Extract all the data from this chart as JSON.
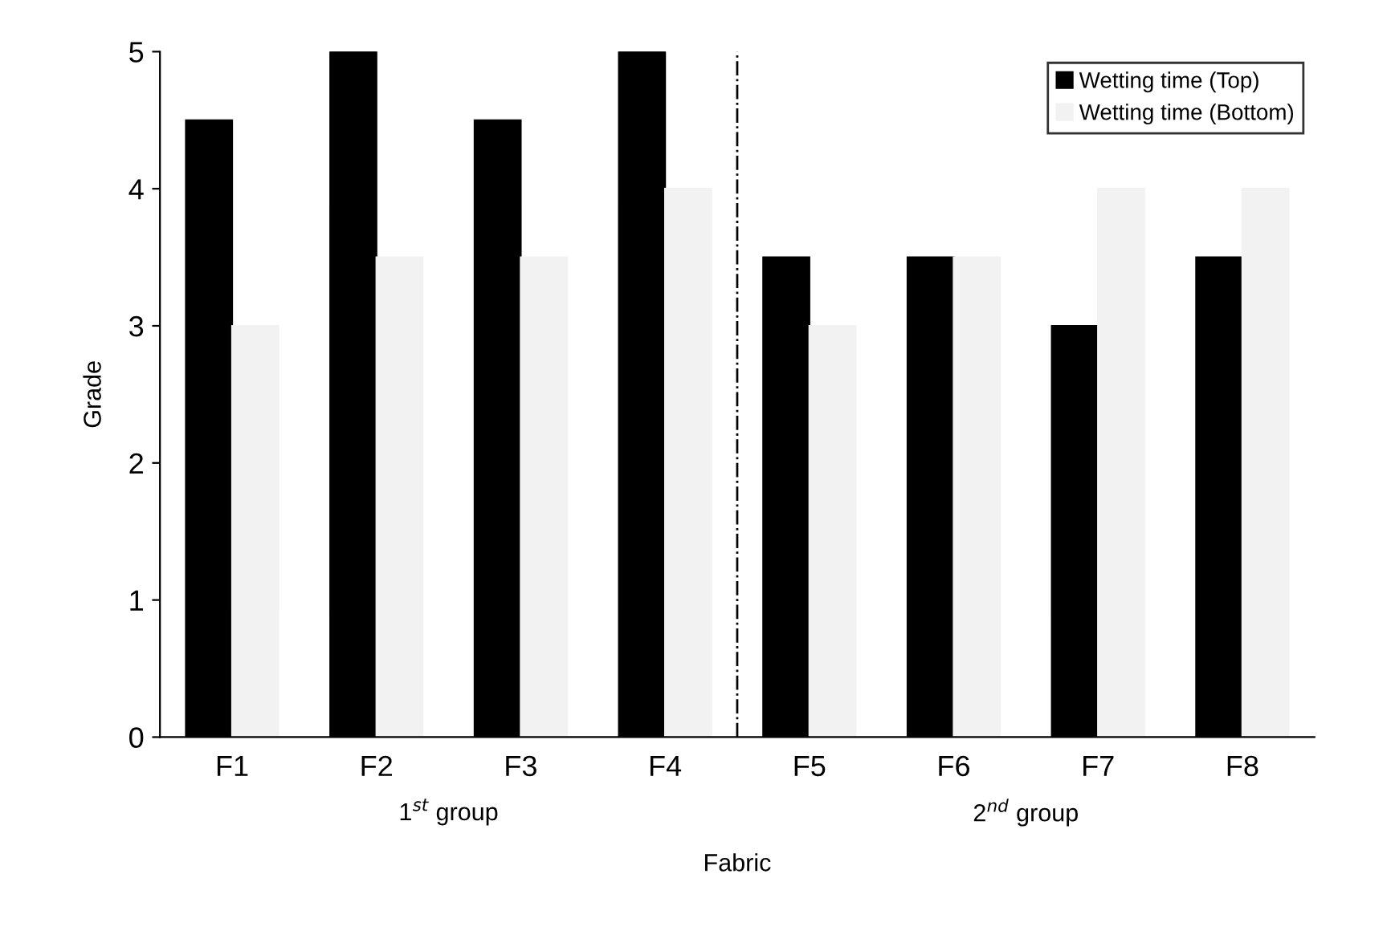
{
  "chart_data": {
    "type": "bar",
    "xlabel": "Fabric",
    "ylabel": "Grade",
    "categories": [
      "F1",
      "F2",
      "F3",
      "F4",
      "F5",
      "F6",
      "F7",
      "F8"
    ],
    "series": [
      {
        "name": "Wetting time (Top)",
        "color": "#000000",
        "values": [
          4.5,
          5,
          4.5,
          5,
          3.5,
          3.5,
          3,
          3.5
        ]
      },
      {
        "name": "Wetting time (Bottom)",
        "color": "#f2f2f2",
        "values": [
          3,
          3.5,
          3.5,
          4,
          3,
          3.5,
          4,
          4
        ]
      }
    ],
    "ylim": [
      0,
      5
    ],
    "yticks": [
      0,
      1,
      2,
      3,
      4,
      5
    ],
    "annotations": [
      "1$^{st}$ group",
      "2$^{nd}$ group"
    ],
    "legend": "top right",
    "grid": false
  }
}
